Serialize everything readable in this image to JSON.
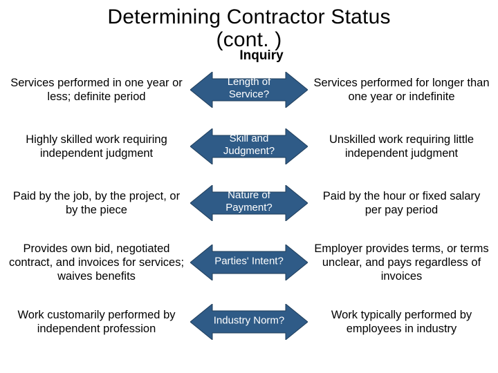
{
  "title": "Determining Contractor Status\n(cont. )",
  "subtitle": "Inquiry",
  "arrow_fill": "#2f5b87",
  "arrow_stroke": "#1f3d5a",
  "background_color": "#ffffff",
  "text_color": "#000000",
  "arrow_label_color": "#ffffff",
  "title_fontsize": 30,
  "side_fontsize": 16.5,
  "arrow_label_fontsize": 15,
  "rows": [
    {
      "left": "Services performed in one year or less; definite period",
      "center": "Length of Service?",
      "right": "Services performed for longer than one year or indefinite"
    },
    {
      "left": "Highly skilled work requiring independent judgment",
      "center": "Skill and Judgment?",
      "right": "Unskilled work requiring little independent judgment"
    },
    {
      "left": "Paid by the job, by the project, or by the piece",
      "center": "Nature of Payment?",
      "right": "Paid by the hour or fixed salary per pay period"
    },
    {
      "left": "Provides own bid, negotiated contract, and invoices for services; waives benefits",
      "center": "Parties' Intent?",
      "right": "Employer provides terms, or terms unclear, and pays regardless of invoices"
    },
    {
      "left": "Work customarily performed by independent profession",
      "center": "Industry Norm?",
      "right": "Work typically performed by employees in industry"
    }
  ]
}
